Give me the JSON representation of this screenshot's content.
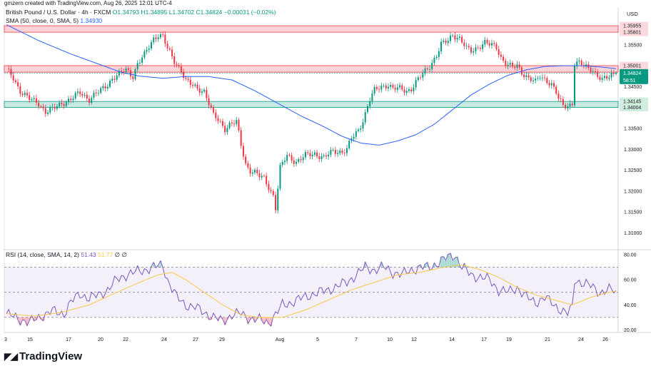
{
  "credit": "gmzern created with TradingView.com, Aug 26, 2025 12:01 UTC-4",
  "legend": {
    "symbol": "British Pound / U.S. Dollar · 4h · FXCM",
    "ohlc": "O1.34793 H1.34895 L1.34702 C1.34824 −0.00031 (−0.02%)",
    "sma_label": "SMA (50, close, 0, SMA, 5)",
    "sma_value": "1.34930",
    "rsi_label": "RSI (14, close, SMA, 14, 2)",
    "rsi_value": "51.43",
    "rsi_sma_value": "51.77",
    "rsi_extra": "∅ ∅"
  },
  "currency": "USD",
  "logo": "TradingView",
  "colors": {
    "up": "#089981",
    "down": "#f23645",
    "sma": "#2962ff",
    "rsi": "#7e57c2",
    "rsi_sma": "#f7c948",
    "resistance_zone": "#f23645",
    "support_zone": "#089981"
  },
  "chart_data": [
    {
      "type": "candlestick",
      "title": "British Pound / U.S. Dollar · 4h · FXCM",
      "ylabel": "USD",
      "ylim": [
        1.306,
        1.364
      ],
      "x_ticks": [
        "3",
        "15",
        "17",
        "20",
        "22",
        "24",
        "27",
        "29",
        "Aug",
        "5",
        "7",
        "10",
        "12",
        "14",
        "17",
        "19",
        "21",
        "24",
        "26"
      ],
      "y_ticks": [
        "1.35500",
        "1.35000",
        "1.34500",
        "1.34000",
        "1.33500",
        "1.33000",
        "1.32500",
        "1.32000",
        "1.31500",
        "1.31000"
      ],
      "price_labels": [
        "1.35955",
        "1.35801",
        "1.35001",
        "1.34846",
        "1.34824",
        "58:51",
        "1.34145",
        "1.34004"
      ],
      "zones": [
        {
          "kind": "resistance",
          "from": 1.35801,
          "to": 1.35955
        },
        {
          "kind": "resistance",
          "from": 1.34846,
          "to": 1.35001
        },
        {
          "kind": "support",
          "from": 1.34004,
          "to": 1.34145
        }
      ],
      "last_price": 1.34824,
      "price_anchors": [
        [
          0,
          1.349
        ],
        [
          3,
          1.347
        ],
        [
          6,
          1.344
        ],
        [
          10,
          1.342
        ],
        [
          14,
          1.341
        ],
        [
          17,
          1.339
        ],
        [
          20,
          1.3395
        ],
        [
          24,
          1.341
        ],
        [
          28,
          1.342
        ],
        [
          32,
          1.3435
        ],
        [
          36,
          1.342
        ],
        [
          38,
          1.343
        ],
        [
          41,
          1.344
        ],
        [
          44,
          1.3455
        ],
        [
          46,
          1.347
        ],
        [
          49,
          1.348
        ],
        [
          52,
          1.349
        ],
        [
          55,
          1.3475
        ],
        [
          57,
          1.3505
        ],
        [
          60,
          1.3525
        ],
        [
          62,
          1.3545
        ],
        [
          64,
          1.3565
        ],
        [
          66,
          1.3575
        ],
        [
          68,
          1.357
        ],
        [
          70,
          1.354
        ],
        [
          73,
          1.351
        ],
        [
          76,
          1.349
        ],
        [
          78,
          1.3465
        ],
        [
          80,
          1.3455
        ],
        [
          83,
          1.3445
        ],
        [
          86,
          1.344
        ],
        [
          88,
          1.341
        ],
        [
          90,
          1.338
        ],
        [
          92,
          1.337
        ],
        [
          95,
          1.335
        ],
        [
          97,
          1.336
        ],
        [
          100,
          1.3365
        ],
        [
          102,
          1.331
        ],
        [
          104,
          1.3265
        ],
        [
          106,
          1.325
        ],
        [
          108,
          1.3245
        ],
        [
          110,
          1.3235
        ],
        [
          112,
          1.323
        ],
        [
          114,
          1.321
        ],
        [
          116,
          1.319
        ],
        [
          117,
          1.316
        ],
        [
          119,
          1.3255
        ],
        [
          122,
          1.3285
        ],
        [
          126,
          1.327
        ],
        [
          130,
          1.3285
        ],
        [
          134,
          1.329
        ],
        [
          138,
          1.328
        ],
        [
          142,
          1.3295
        ],
        [
          146,
          1.3295
        ],
        [
          148,
          1.33
        ],
        [
          150,
          1.3325
        ],
        [
          153,
          1.3345
        ],
        [
          155,
          1.337
        ],
        [
          158,
          1.342
        ],
        [
          160,
          1.344
        ],
        [
          163,
          1.345
        ],
        [
          166,
          1.3455
        ],
        [
          168,
          1.3445
        ],
        [
          171,
          1.3445
        ],
        [
          174,
          1.344
        ],
        [
          176,
          1.3445
        ],
        [
          178,
          1.346
        ],
        [
          181,
          1.348
        ],
        [
          184,
          1.35
        ],
        [
          187,
          1.3525
        ],
        [
          189,
          1.355
        ],
        [
          192,
          1.356
        ],
        [
          194,
          1.3575
        ],
        [
          197,
          1.3565
        ],
        [
          200,
          1.354
        ],
        [
          202,
          1.3535
        ],
        [
          205,
          1.3545
        ],
        [
          208,
          1.3555
        ],
        [
          210,
          1.355
        ],
        [
          213,
          1.3545
        ],
        [
          215,
          1.352
        ],
        [
          217,
          1.3505
        ],
        [
          220,
          1.3495
        ],
        [
          222,
          1.35
        ],
        [
          224,
          1.3485
        ],
        [
          227,
          1.347
        ],
        [
          230,
          1.346
        ],
        [
          232,
          1.3475
        ],
        [
          235,
          1.3465
        ],
        [
          237,
          1.3455
        ],
        [
          239,
          1.3435
        ],
        [
          240,
          1.342
        ],
        [
          242,
          1.3405
        ],
        [
          244,
          1.3405
        ],
        [
          246,
          1.341
        ],
        [
          247,
          1.3505
        ],
        [
          249,
          1.3505
        ],
        [
          251,
          1.35
        ],
        [
          253,
          1.3495
        ],
        [
          255,
          1.349
        ],
        [
          257,
          1.3475
        ],
        [
          259,
          1.3465
        ],
        [
          261,
          1.347
        ],
        [
          263,
          1.348
        ],
        [
          265,
          1.3482
        ]
      ],
      "sma_anchors": [
        [
          0,
          1.3598
        ],
        [
          14,
          1.356
        ],
        [
          28,
          1.3528
        ],
        [
          42,
          1.35
        ],
        [
          50,
          1.3484
        ],
        [
          58,
          1.3475
        ],
        [
          68,
          1.347
        ],
        [
          78,
          1.3474
        ],
        [
          88,
          1.3474
        ],
        [
          98,
          1.3466
        ],
        [
          108,
          1.344
        ],
        [
          118,
          1.341
        ],
        [
          128,
          1.338
        ],
        [
          138,
          1.3354
        ],
        [
          146,
          1.3331
        ],
        [
          154,
          1.3315
        ],
        [
          162,
          1.331
        ],
        [
          170,
          1.332
        ],
        [
          178,
          1.3335
        ],
        [
          186,
          1.336
        ],
        [
          194,
          1.3395
        ],
        [
          202,
          1.343
        ],
        [
          210,
          1.3456
        ],
        [
          218,
          1.3477
        ],
        [
          226,
          1.349
        ],
        [
          234,
          1.3498
        ],
        [
          242,
          1.35
        ],
        [
          250,
          1.35
        ],
        [
          258,
          1.3497
        ],
        [
          265,
          1.3493
        ]
      ]
    },
    {
      "type": "line",
      "title": "RSI (14, close, SMA, 14, 2)",
      "ylim": [
        18,
        84
      ],
      "y_ticks": [
        "80.00",
        "60.00",
        "40.00",
        "20.00"
      ],
      "bands": [
        70,
        50,
        30
      ],
      "series": [
        {
          "name": "RSI",
          "points": [
            [
              0,
              33
            ],
            [
              5,
              29
            ],
            [
              10,
              26
            ],
            [
              15,
              31
            ],
            [
              20,
              35
            ],
            [
              25,
              33
            ],
            [
              28,
              42
            ],
            [
              32,
              49
            ],
            [
              36,
              45
            ],
            [
              40,
              48
            ],
            [
              44,
              52
            ],
            [
              48,
              60
            ],
            [
              52,
              64
            ],
            [
              56,
              66
            ],
            [
              60,
              68
            ],
            [
              64,
              70
            ],
            [
              68,
              72
            ],
            [
              70,
              60
            ],
            [
              74,
              46
            ],
            [
              78,
              40
            ],
            [
              82,
              38
            ],
            [
              86,
              34
            ],
            [
              90,
              30
            ],
            [
              94,
              27
            ],
            [
              98,
              32
            ],
            [
              102,
              33
            ],
            [
              106,
              29
            ],
            [
              110,
              28
            ],
            [
              114,
              26
            ],
            [
              117,
              32
            ],
            [
              120,
              40
            ],
            [
              124,
              42
            ],
            [
              128,
              45
            ],
            [
              132,
              48
            ],
            [
              136,
              50
            ],
            [
              140,
              52
            ],
            [
              144,
              55
            ],
            [
              148,
              58
            ],
            [
              152,
              64
            ],
            [
              156,
              70
            ],
            [
              160,
              68
            ],
            [
              164,
              70
            ],
            [
              168,
              66
            ],
            [
              172,
              64
            ],
            [
              176,
              68
            ],
            [
              180,
              70
            ],
            [
              184,
              70
            ],
            [
              188,
              74
            ],
            [
              192,
              78
            ],
            [
              195,
              80
            ],
            [
              198,
              70
            ],
            [
              202,
              64
            ],
            [
              206,
              62
            ],
            [
              210,
              60
            ],
            [
              214,
              52
            ],
            [
              218,
              50
            ],
            [
              222,
              54
            ],
            [
              226,
              46
            ],
            [
              230,
              42
            ],
            [
              234,
              46
            ],
            [
              238,
              40
            ],
            [
              242,
              35
            ],
            [
              244,
              33
            ],
            [
              246,
              38
            ],
            [
              247,
              60
            ],
            [
              250,
              58
            ],
            [
              254,
              55
            ],
            [
              258,
              50
            ],
            [
              262,
              52
            ],
            [
              265,
              51
            ]
          ]
        },
        {
          "name": "RSI-based MA",
          "points": [
            [
              0,
              33
            ],
            [
              12,
              31
            ],
            [
              24,
              34
            ],
            [
              36,
              40
            ],
            [
              48,
              50
            ],
            [
              58,
              58
            ],
            [
              66,
              64
            ],
            [
              72,
              66
            ],
            [
              78,
              60
            ],
            [
              86,
              50
            ],
            [
              94,
              40
            ],
            [
              102,
              32
            ],
            [
              110,
              30
            ],
            [
              120,
              30
            ],
            [
              130,
              36
            ],
            [
              140,
              44
            ],
            [
              150,
              52
            ],
            [
              160,
              58
            ],
            [
              170,
              64
            ],
            [
              180,
              66
            ],
            [
              190,
              70
            ],
            [
              198,
              72
            ],
            [
              206,
              68
            ],
            [
              214,
              62
            ],
            [
              222,
              54
            ],
            [
              230,
              48
            ],
            [
              238,
              44
            ],
            [
              246,
              40
            ],
            [
              254,
              46
            ],
            [
              262,
              50
            ],
            [
              265,
              51
            ]
          ]
        }
      ]
    }
  ]
}
